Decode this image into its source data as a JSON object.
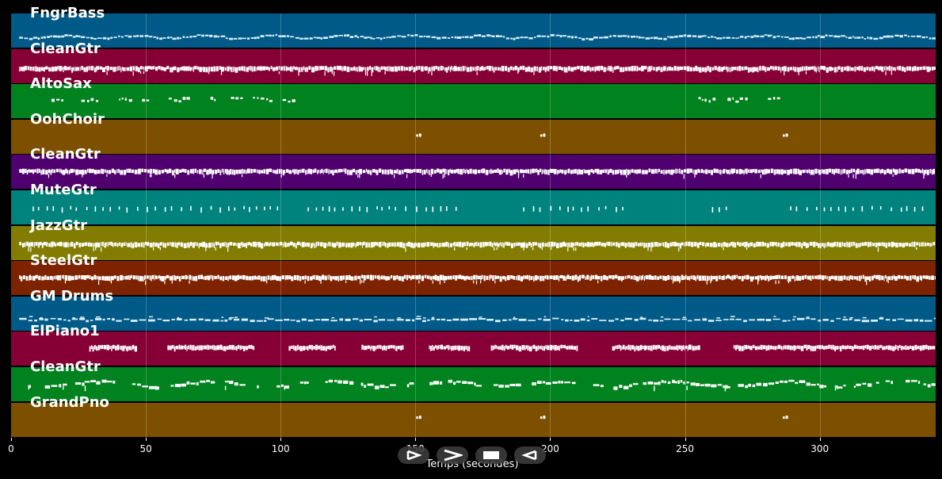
{
  "tracks": [
    {
      "name": "FngrBass",
      "color": "#005a87",
      "note_color": "#d8eef8",
      "style": "thin-wavy",
      "ranges": [
        [
          3,
          343
        ]
      ],
      "ypos": 0.7
    },
    {
      "name": "CleanGtr",
      "color": "#870035",
      "note_color": "#ffffff",
      "style": "dense",
      "ranges": [
        [
          3,
          343
        ]
      ],
      "ypos": 0.58
    },
    {
      "name": "AltoSax",
      "color": "#00821e",
      "note_color": "#ffffff",
      "style": "sparse-phrases",
      "ranges": [
        [
          15,
          110
        ],
        [
          255,
          288
        ]
      ],
      "ypos": 0.5
    },
    {
      "name": "OohChoir",
      "color": "#7d5000",
      "note_color": "#ffffff",
      "style": "isolated",
      "ranges": [
        [
          150,
          152
        ],
        [
          196,
          198
        ],
        [
          286,
          288
        ]
      ],
      "ypos": 0.45
    },
    {
      "name": "CleanGtr",
      "color": "#50006e",
      "note_color": "#ffffff",
      "style": "dense",
      "ranges": [
        [
          3,
          343
        ]
      ],
      "ypos": 0.5
    },
    {
      "name": "MuteGtr",
      "color": "#00827d",
      "note_color": "#ffffff",
      "style": "ticks",
      "ranges": [
        [
          8,
          100
        ],
        [
          110,
          165
        ],
        [
          190,
          228
        ],
        [
          260,
          268
        ],
        [
          289,
          340
        ]
      ],
      "ypos": 0.55
    },
    {
      "name": "JazzGtr",
      "color": "#827d00",
      "note_color": "#ffffff",
      "style": "dense",
      "ranges": [
        [
          3,
          343
        ]
      ],
      "ypos": 0.55
    },
    {
      "name": "SteelGtr",
      "color": "#7d2300",
      "note_color": "#ffffff",
      "style": "dense",
      "ranges": [
        [
          3,
          343
        ]
      ],
      "ypos": 0.5
    },
    {
      "name": "GM Drums",
      "color": "#005a87",
      "note_color": "#d8eef8",
      "style": "drum",
      "ranges": [
        [
          3,
          343
        ]
      ],
      "ypos": 0.68
    },
    {
      "name": "ElPiano1",
      "color": "#870035",
      "note_color": "#ffffff",
      "style": "blocks",
      "ranges": [
        [
          29,
          46
        ],
        [
          58,
          90
        ],
        [
          103,
          120
        ],
        [
          130,
          145
        ],
        [
          155,
          170
        ],
        [
          178,
          210
        ],
        [
          223,
          255
        ],
        [
          268,
          343
        ]
      ],
      "ypos": 0.48
    },
    {
      "name": "CleanGtr",
      "color": "#00821e",
      "note_color": "#ffffff",
      "style": "wavy",
      "ranges": [
        [
          3,
          343
        ]
      ],
      "ypos": 0.5
    },
    {
      "name": "GrandPno",
      "color": "#7d5000",
      "note_color": "#ffffff",
      "style": "isolated",
      "ranges": [
        [
          150,
          152
        ],
        [
          196,
          198
        ],
        [
          286,
          288
        ]
      ],
      "ypos": 0.42
    }
  ],
  "x_axis": {
    "min": 0,
    "max": 343,
    "ticks": [
      "0",
      "50",
      "100",
      "150",
      "200",
      "250",
      "300"
    ],
    "title": "Temps (secondes)"
  },
  "controls": [
    {
      "name": "play-button",
      "icon": "play-icon"
    },
    {
      "name": "forward-button",
      "icon": "forward-icon"
    },
    {
      "name": "stop-button",
      "icon": "stop-icon"
    },
    {
      "name": "rewind-button",
      "icon": "rewind-icon"
    }
  ]
}
